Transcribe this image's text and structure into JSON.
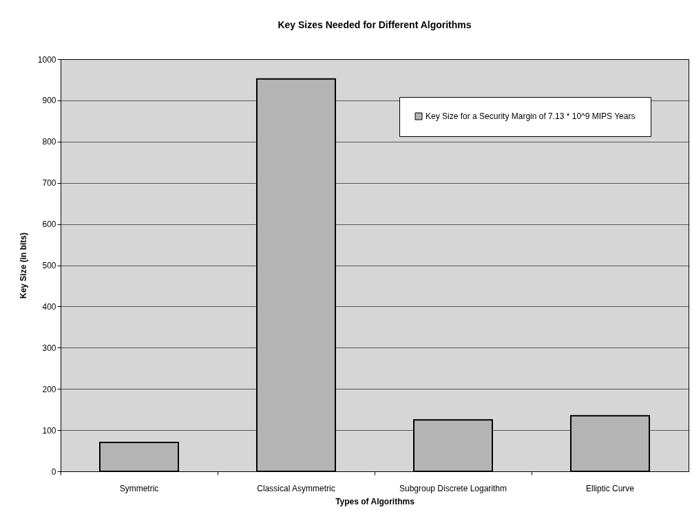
{
  "chart_data": {
    "type": "bar",
    "title": "Key Sizes Needed for Different Algorithms",
    "xlabel": "Types of Algorithms",
    "ylabel": "Key Size (in bits)",
    "categories": [
      "Symmetric",
      "Classical Asymmetric",
      "Subgroup Discrete Logarithm",
      "Elliptic Curve"
    ],
    "series": [
      {
        "name": "Key Size for a Security Margin of 7.13 * 10^9 MIPS Years",
        "color": "#b4b4b4",
        "values": [
          70,
          952,
          125,
          135
        ]
      }
    ],
    "ylim": [
      0,
      1000
    ],
    "yticks": [
      0,
      100,
      200,
      300,
      400,
      500,
      600,
      700,
      800,
      900,
      1000
    ],
    "grid": "y",
    "legend": "top right"
  }
}
